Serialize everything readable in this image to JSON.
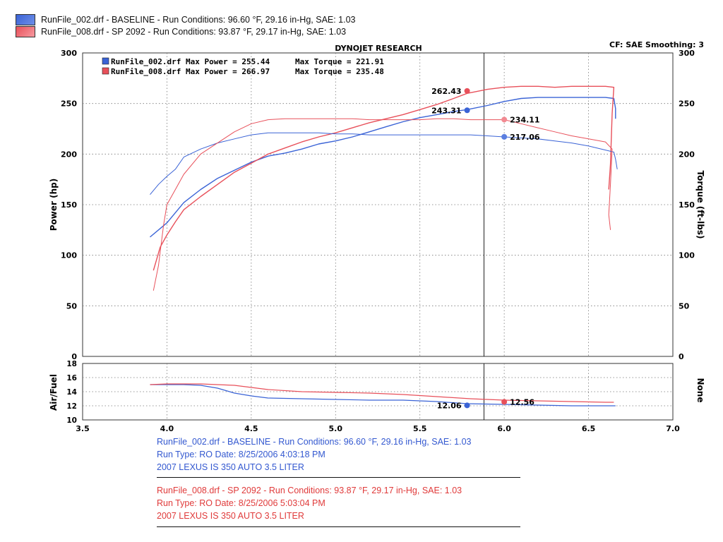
{
  "legend": [
    {
      "text": "RunFile_002.drf - BASELINE  -  Run Conditions: 96.60 °F, 29.16 in-Hg, SAE: 1.03",
      "color": "#3a63d6"
    },
    {
      "text": "RunFile_008.drf - SP 2092  -  Run Conditions: 93.87 °F, 29.17 in-Hg, SAE: 1.03",
      "color": "#e8505a"
    }
  ],
  "header": {
    "title": "DYNOJET RESEARCH",
    "cf_smoothing": "CF: SAE  Smoothing: 3"
  },
  "max_info": [
    {
      "label": "RunFile_002.drf Max Power = 255.44",
      "torque": "Max Torque = 221.91",
      "color": "#3a63d6"
    },
    {
      "label": "RunFile_008.drf Max Power = 266.97",
      "torque": "Max Torque = 235.48",
      "color": "#e8505a"
    }
  ],
  "chart_data": [
    {
      "type": "line",
      "title": "DYNOJET RESEARCH",
      "ylabel": "Power (hp)",
      "y2label": "Torque (ft-lbs)",
      "ylim": [
        0,
        300
      ],
      "y2lim": [
        0,
        300
      ],
      "xlim": [
        3.5,
        7.0
      ],
      "yticks": [
        "0",
        "50",
        "100",
        "150",
        "200",
        "250",
        "300"
      ],
      "grid": true,
      "cursor_x": 5.88,
      "series": [
        {
          "name": "RunFile_002.drf Power",
          "color": "#3a63d6",
          "width": 1.4,
          "points": [
            [
              3.9,
              118
            ],
            [
              4.0,
              132
            ],
            [
              4.1,
              152
            ],
            [
              4.2,
              165
            ],
            [
              4.3,
              176
            ],
            [
              4.4,
              184
            ],
            [
              4.5,
              192
            ],
            [
              4.6,
              198
            ],
            [
              4.7,
              201
            ],
            [
              4.8,
              205
            ],
            [
              4.9,
              210
            ],
            [
              5.0,
              213
            ],
            [
              5.1,
              217
            ],
            [
              5.2,
              222
            ],
            [
              5.3,
              227
            ],
            [
              5.4,
              232
            ],
            [
              5.5,
              236
            ],
            [
              5.6,
              239
            ],
            [
              5.7,
              242
            ],
            [
              5.78,
              244
            ],
            [
              5.9,
              248
            ],
            [
              6.0,
              252
            ],
            [
              6.1,
              255
            ],
            [
              6.2,
              256
            ],
            [
              6.3,
              256
            ],
            [
              6.4,
              256
            ],
            [
              6.5,
              256
            ],
            [
              6.6,
              256
            ],
            [
              6.65,
              255
            ],
            [
              6.66,
              245
            ],
            [
              6.66,
              235
            ]
          ]
        },
        {
          "name": "RunFile_008.drf Power",
          "color": "#e8505a",
          "width": 1.4,
          "points": [
            [
              3.92,
              85
            ],
            [
              3.96,
              108
            ],
            [
              4.0,
              120
            ],
            [
              4.05,
              133
            ],
            [
              4.1,
              145
            ],
            [
              4.2,
              158
            ],
            [
              4.3,
              170
            ],
            [
              4.4,
              182
            ],
            [
              4.5,
              191
            ],
            [
              4.6,
              200
            ],
            [
              4.7,
              206
            ],
            [
              4.8,
              212
            ],
            [
              4.9,
              217
            ],
            [
              5.0,
              221
            ],
            [
              5.1,
              226
            ],
            [
              5.2,
              231
            ],
            [
              5.3,
              235
            ],
            [
              5.4,
              239
            ],
            [
              5.5,
              244
            ],
            [
              5.6,
              249
            ],
            [
              5.7,
              255
            ],
            [
              5.78,
              260
            ],
            [
              5.9,
              264
            ],
            [
              6.0,
              266
            ],
            [
              6.1,
              267
            ],
            [
              6.2,
              267
            ],
            [
              6.3,
              266
            ],
            [
              6.4,
              267
            ],
            [
              6.5,
              267
            ],
            [
              6.6,
              267
            ],
            [
              6.65,
              266
            ],
            [
              6.64,
              240
            ],
            [
              6.63,
              190
            ],
            [
              6.62,
              165
            ]
          ]
        },
        {
          "name": "RunFile_002.drf Torque",
          "color": "#3a63d6",
          "width": 1.0,
          "points": [
            [
              3.9,
              160
            ],
            [
              3.95,
              170
            ],
            [
              4.0,
              178
            ],
            [
              4.05,
              185
            ],
            [
              4.1,
              197
            ],
            [
              4.2,
              205
            ],
            [
              4.3,
              211
            ],
            [
              4.4,
              215
            ],
            [
              4.5,
              219
            ],
            [
              4.6,
              221
            ],
            [
              4.7,
              221
            ],
            [
              4.8,
              221
            ],
            [
              4.9,
              221
            ],
            [
              5.0,
              220
            ],
            [
              5.1,
              220
            ],
            [
              5.2,
              219
            ],
            [
              5.3,
              219
            ],
            [
              5.4,
              219
            ],
            [
              5.5,
              219
            ],
            [
              5.6,
              219
            ],
            [
              5.7,
              219
            ],
            [
              5.8,
              219
            ],
            [
              5.9,
              218
            ],
            [
              6.0,
              217
            ],
            [
              6.1,
              216
            ],
            [
              6.2,
              215
            ],
            [
              6.3,
              213
            ],
            [
              6.4,
              211
            ],
            [
              6.5,
              208
            ],
            [
              6.6,
              204
            ],
            [
              6.65,
              202
            ],
            [
              6.66,
              195
            ],
            [
              6.67,
              185
            ]
          ]
        },
        {
          "name": "RunFile_008.drf Torque",
          "color": "#e8505a",
          "width": 1.0,
          "points": [
            [
              3.92,
              65
            ],
            [
              3.95,
              90
            ],
            [
              3.98,
              130
            ],
            [
              4.0,
              150
            ],
            [
              4.05,
              165
            ],
            [
              4.1,
              180
            ],
            [
              4.2,
              200
            ],
            [
              4.3,
              211
            ],
            [
              4.4,
              222
            ],
            [
              4.5,
              230
            ],
            [
              4.6,
              234
            ],
            [
              4.7,
              235
            ],
            [
              4.8,
              235
            ],
            [
              4.9,
              235
            ],
            [
              5.0,
              235
            ],
            [
              5.1,
              235
            ],
            [
              5.2,
              234
            ],
            [
              5.3,
              234
            ],
            [
              5.4,
              234
            ],
            [
              5.5,
              234
            ],
            [
              5.6,
              235
            ],
            [
              5.7,
              235
            ],
            [
              5.8,
              234
            ],
            [
              5.9,
              234
            ],
            [
              6.0,
              234
            ],
            [
              6.1,
              230
            ],
            [
              6.2,
              226
            ],
            [
              6.3,
              222
            ],
            [
              6.4,
              218
            ],
            [
              6.5,
              215
            ],
            [
              6.6,
              212
            ],
            [
              6.64,
              205
            ],
            [
              6.63,
              170
            ],
            [
              6.62,
              140
            ],
            [
              6.63,
              125
            ]
          ]
        }
      ],
      "markers": [
        {
          "x": 5.78,
          "y": 262.43,
          "label": "262.43",
          "color": "#e8505a",
          "side": "left"
        },
        {
          "x": 5.78,
          "y": 243.31,
          "label": "243.31",
          "color": "#3a63d6",
          "side": "left"
        },
        {
          "x": 6.0,
          "y": 234.11,
          "label": "234.11",
          "color": "#f28a92",
          "side": "right"
        },
        {
          "x": 6.0,
          "y": 217.06,
          "label": "217.06",
          "color": "#5b7fe0",
          "side": "right"
        }
      ]
    },
    {
      "type": "line",
      "ylabel": "Air/Fuel",
      "y2label": "None",
      "ylim": [
        10,
        18
      ],
      "xlim": [
        3.5,
        7.0
      ],
      "yticks": [
        "10",
        "12",
        "14",
        "16",
        "18"
      ],
      "xticks": [
        "3.5",
        "4.0",
        "4.5",
        "5.0",
        "5.5",
        "6.0",
        "6.5",
        "7.0"
      ],
      "grid": true,
      "cursor_x": 5.88,
      "series": [
        {
          "name": "RunFile_002.drf Air/Fuel",
          "color": "#3a63d6",
          "width": 1.2,
          "points": [
            [
              3.9,
              15.0
            ],
            [
              4.0,
              15.0
            ],
            [
              4.1,
              15.0
            ],
            [
              4.2,
              14.9
            ],
            [
              4.3,
              14.5
            ],
            [
              4.4,
              13.8
            ],
            [
              4.5,
              13.4
            ],
            [
              4.6,
              13.1
            ],
            [
              4.8,
              13.0
            ],
            [
              5.0,
              12.9
            ],
            [
              5.2,
              12.8
            ],
            [
              5.4,
              12.8
            ],
            [
              5.6,
              12.6
            ],
            [
              5.78,
              12.3
            ],
            [
              6.0,
              12.2
            ],
            [
              6.2,
              12.1
            ],
            [
              6.4,
              12.0
            ],
            [
              6.6,
              12.0
            ],
            [
              6.66,
              12.0
            ]
          ]
        },
        {
          "name": "RunFile_008.drf Air/Fuel",
          "color": "#e8505a",
          "width": 1.2,
          "points": [
            [
              3.9,
              15.0
            ],
            [
              4.0,
              15.1
            ],
            [
              4.2,
              15.1
            ],
            [
              4.4,
              14.9
            ],
            [
              4.5,
              14.6
            ],
            [
              4.6,
              14.3
            ],
            [
              4.8,
              14.0
            ],
            [
              5.0,
              13.9
            ],
            [
              5.2,
              13.8
            ],
            [
              5.4,
              13.6
            ],
            [
              5.6,
              13.3
            ],
            [
              5.8,
              13.0
            ],
            [
              6.0,
              12.8
            ],
            [
              6.2,
              12.7
            ],
            [
              6.4,
              12.6
            ],
            [
              6.6,
              12.5
            ],
            [
              6.65,
              12.5
            ]
          ]
        }
      ],
      "markers": [
        {
          "x": 5.78,
          "y": 12.06,
          "label": "12.06",
          "color": "#3a63d6",
          "side": "left"
        },
        {
          "x": 6.0,
          "y": 12.56,
          "label": "12.56",
          "color": "#e8505a",
          "side": "right"
        }
      ]
    }
  ],
  "footer": {
    "run1": {
      "line1": "RunFile_002.drf - BASELINE  -  Run Conditions: 96.60 °F, 29.16 in-Hg, SAE: 1.03",
      "line2": "Run Type: RO  Date: 8/25/2006 4:03:18 PM",
      "line3": "2007 LEXUS IS 350 AUTO 3.5 LITER"
    },
    "run2": {
      "line1": "RunFile_008.drf - SP 2092  -  Run Conditions: 93.87 °F, 29.17 in-Hg, SAE: 1.03",
      "line2": "Run Type: RO  Date: 8/25/2006 5:03:04 PM",
      "line3": "2007 LEXUS IS 350 AUTO 3.5 LITER"
    }
  }
}
